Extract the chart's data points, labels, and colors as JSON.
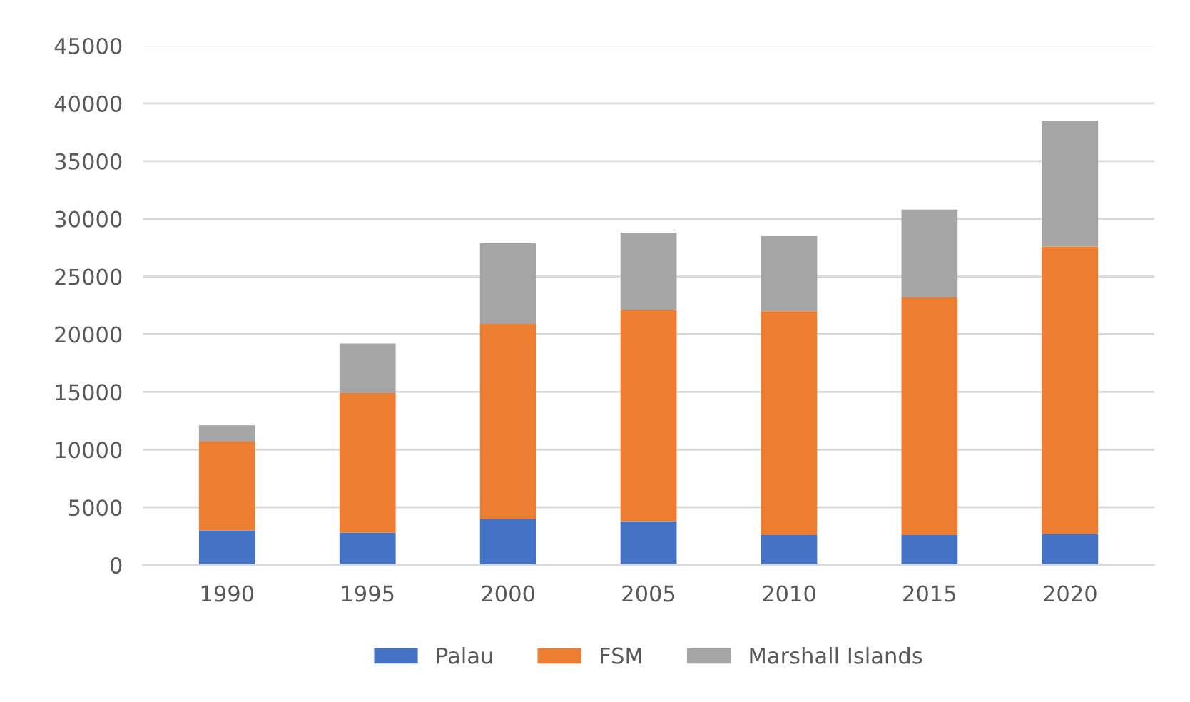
{
  "chart_data": {
    "type": "bar",
    "stacked": true,
    "categories": [
      "1990",
      "1995",
      "2000",
      "2005",
      "2010",
      "2015",
      "2020"
    ],
    "series": [
      {
        "name": "Palau",
        "color": "#4472c4",
        "values": [
          3000,
          2800,
          4000,
          3800,
          2600,
          2600,
          2700
        ]
      },
      {
        "name": "FSM",
        "color": "#ed7d31",
        "values": [
          7700,
          12100,
          16900,
          18300,
          19400,
          20600,
          24900
        ]
      },
      {
        "name": "Marshall Islands",
        "color": "#a5a5a5",
        "values": [
          1400,
          4300,
          7000,
          6700,
          6500,
          7600,
          10900
        ]
      }
    ],
    "ylim": [
      0,
      45000
    ],
    "yticks": [
      0,
      5000,
      10000,
      15000,
      20000,
      25000,
      30000,
      35000,
      40000,
      45000
    ],
    "grid": "y",
    "legend": "bottom"
  }
}
